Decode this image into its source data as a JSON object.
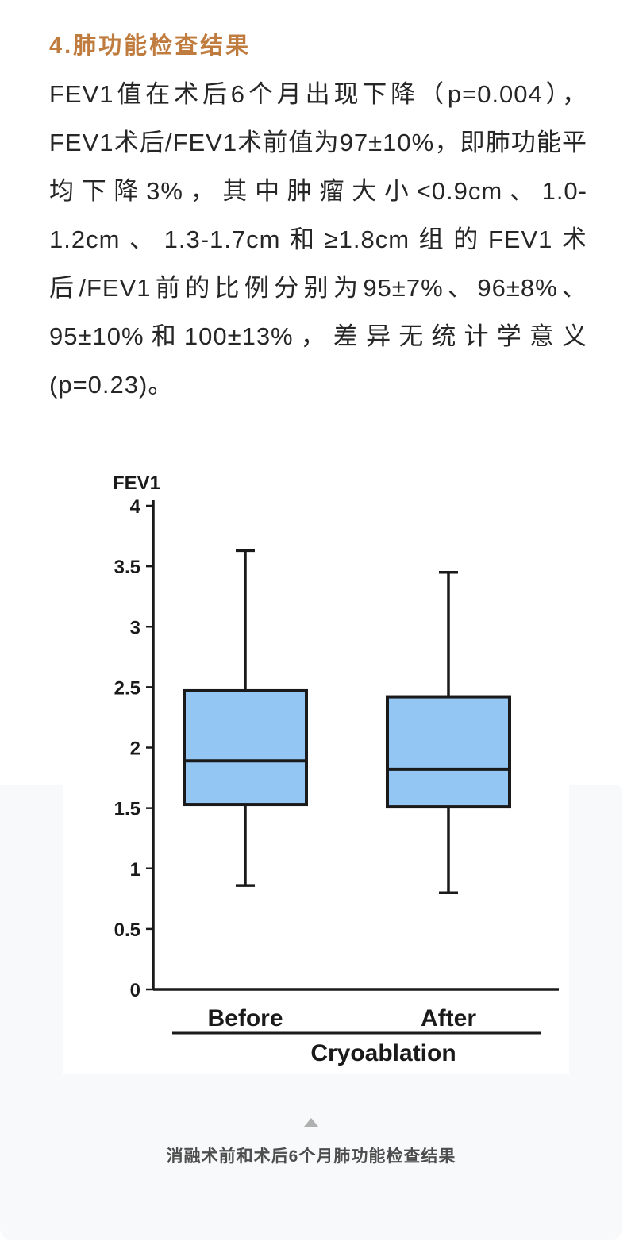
{
  "page": {
    "background": "#ffffff",
    "panel_background": "#f8f9fa"
  },
  "article": {
    "heading": {
      "text": "4.肺功能检查结果",
      "color": "#c07c3e"
    },
    "paragraph": "FEV1值在术后6个月出现下降（p=0.004），FEV1术后/FEV1术前值为97±10%，即肺功能平均下降3%，其中肿瘤大小<0.9cm、1.0-1.2cm、1.3-1.7cm和≥1.8cm组的FEV1术后/FEV1前的比例分别为95±7%、96±8%、95±10%和100±13%，差异无统计学意义(p=0.23)。"
  },
  "figure": {
    "collapse_icon": "triangle-up-icon",
    "caption": "消融术前和术后6个月肺功能检查结果"
  },
  "chart_data": {
    "type": "boxplot",
    "title": "FEV1",
    "ylabel": "FEV1",
    "categories": [
      "Before",
      "After"
    ],
    "group_label": "Cryoablation",
    "ylim": [
      0,
      4
    ],
    "yticks": [
      0,
      0.5,
      1,
      1.5,
      2,
      2.5,
      3,
      3.5,
      4
    ],
    "grid": false,
    "legend": "none",
    "series": [
      {
        "name": "Before",
        "whisker_low": 0.86,
        "q1": 1.53,
        "median": 1.89,
        "q3": 2.47,
        "whisker_high": 3.63
      },
      {
        "name": "After",
        "whisker_low": 0.8,
        "q1": 1.51,
        "median": 1.82,
        "q3": 2.42,
        "whisker_high": 3.45
      }
    ],
    "colors": {
      "box_fill": "#94c6f3",
      "ink": "#1a1a1a"
    }
  }
}
